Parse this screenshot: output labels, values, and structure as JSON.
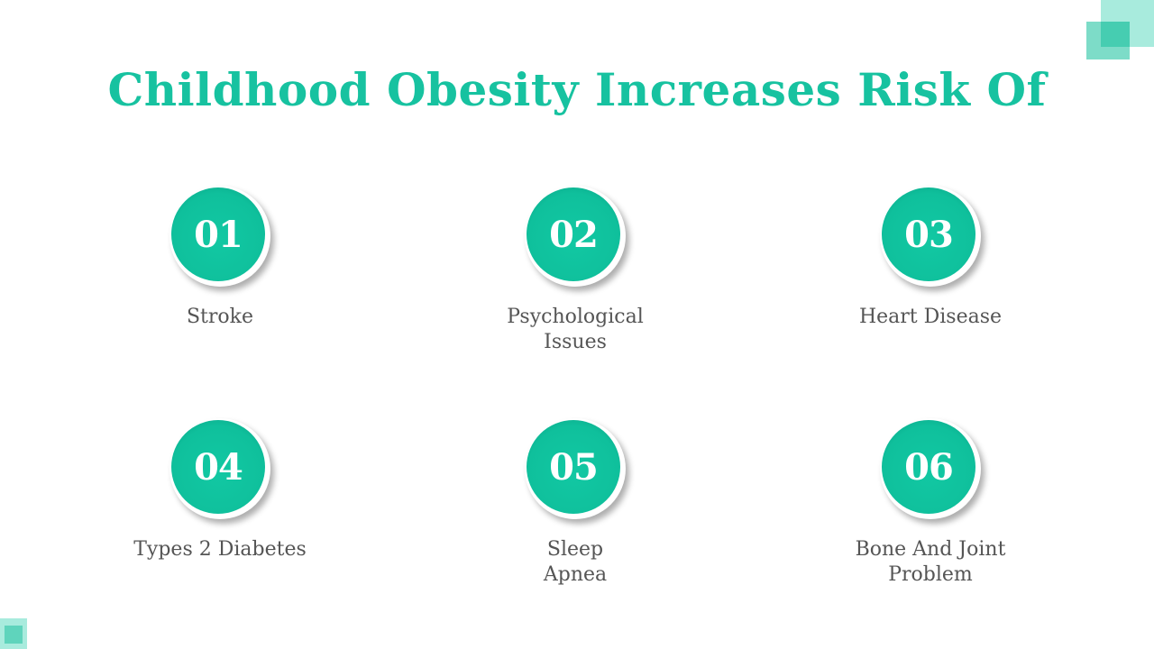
{
  "slide": {
    "title": "Childhood Obesity Increases Risk Of",
    "colors": {
      "accent": "#17c2a0",
      "circle": "#0fc09c",
      "text": "#555555",
      "decor_light": "#a8ebdd",
      "decor_mid": "#46cdb1"
    },
    "items": [
      {
        "number": "01",
        "label": "Stroke"
      },
      {
        "number": "02",
        "label": "Psychological Issues"
      },
      {
        "number": "03",
        "label": "Heart Disease"
      },
      {
        "number": "04",
        "label": "Types 2 Diabetes"
      },
      {
        "number": "05",
        "label": "Sleep Apnea"
      },
      {
        "number": "06",
        "label": "Bone And Joint Problem"
      }
    ]
  }
}
